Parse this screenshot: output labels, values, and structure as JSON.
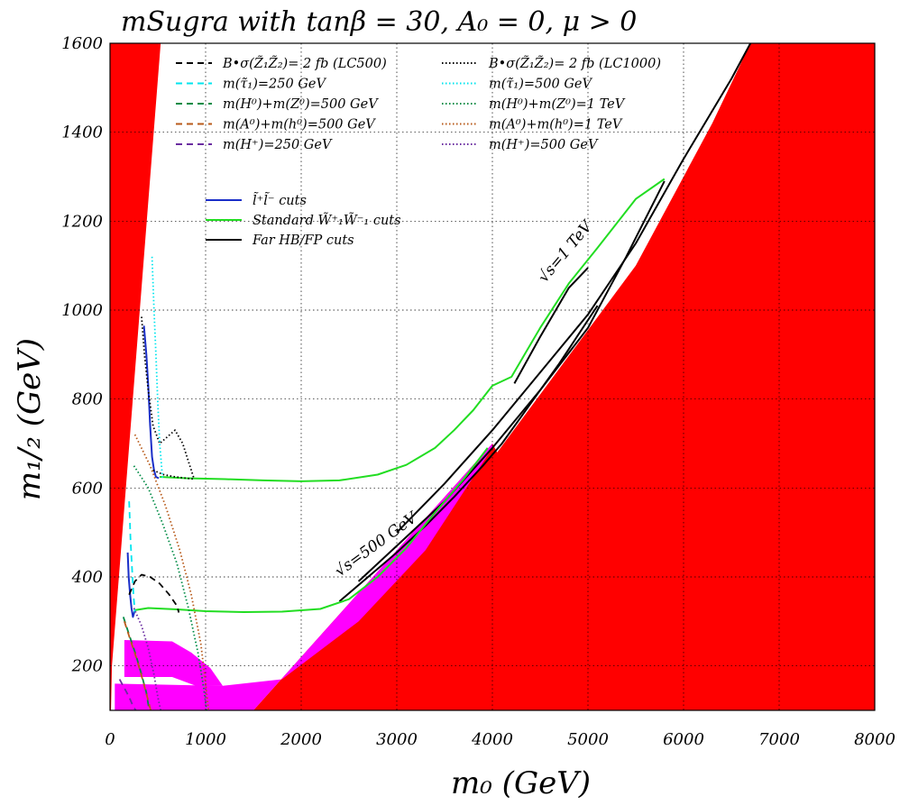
{
  "chart_data": {
    "type": "line",
    "title": "mSugra with tanβ = 30, A₀ = 0, μ > 0",
    "xlabel": "m₀ (GeV)",
    "ylabel": "m₁/₂ (GeV)",
    "xlim": [
      0,
      8000
    ],
    "ylim": [
      100,
      1600
    ],
    "xticks": [
      "0",
      "1000",
      "2000",
      "3000",
      "4000",
      "5000",
      "6000",
      "7000",
      "8000"
    ],
    "yticks": [
      "200",
      "400",
      "600",
      "800",
      "1000",
      "1200",
      "1400",
      "1600"
    ],
    "grid": "dotted",
    "legend_position": "top-left",
    "legend_dashed": [
      {
        "label": "B•σ(Z̃₁Z̃₂)= 2 fb (LC500)",
        "color": "#000000",
        "style": "dash"
      },
      {
        "label": "m(τ̃₁)=250 GeV",
        "color": "#00e5ee",
        "style": "dash"
      },
      {
        "label": "m(H⁰)+m(Z⁰)=500 GeV",
        "color": "#008b45",
        "style": "dash"
      },
      {
        "label": "m(A⁰)+m(h⁰)=500 GeV",
        "color": "#b85a1a",
        "style": "dash"
      },
      {
        "label": "m(H⁺)=250 GeV",
        "color": "#6a2ca0",
        "style": "dash"
      },
      {
        "label": "B•σ(Z̃₁Z̃₂)= 2 fb (LC1000)",
        "color": "#000000",
        "style": "dot"
      },
      {
        "label": "m(τ̃₁)=500 GeV",
        "color": "#00e5ee",
        "style": "dot"
      },
      {
        "label": "m(H⁰)+m(Z⁰)=1 TeV",
        "color": "#008b45",
        "style": "dot"
      },
      {
        "label": "m(A⁰)+m(h⁰)=1 TeV",
        "color": "#b85a1a",
        "style": "dot"
      },
      {
        "label": "m(H⁺)=500 GeV",
        "color": "#6a2ca0",
        "style": "dot"
      }
    ],
    "legend_solid": [
      {
        "label": "l̃⁺l̃⁻ cuts",
        "color": "#1a2ec8"
      },
      {
        "label": "Standard W̃⁺₁W̃⁻₁ cuts",
        "color": "#22dd22"
      },
      {
        "label": "Far HB/FP cuts",
        "color": "#000000"
      }
    ],
    "annotations": [
      {
        "text": "√s=500 GeV",
        "x": 2400,
        "y": 400
      },
      {
        "text": "√s=1 TeV",
        "x": 4550,
        "y": 1060
      }
    ],
    "regions": [
      {
        "name": "excluded-theory-high-m0",
        "color": "#ff0000",
        "points": [
          [
            1500,
            100
          ],
          [
            4000,
            700
          ],
          [
            4050,
            680
          ],
          [
            5500,
            1100
          ],
          [
            6300,
            1420
          ],
          [
            6700,
            1600
          ],
          [
            8000,
            1600
          ],
          [
            8000,
            100
          ]
        ]
      },
      {
        "name": "excluded-theory-low-m0",
        "color": "#ff0000",
        "points": [
          [
            0,
            100
          ],
          [
            0,
            1600
          ],
          [
            530,
            1600
          ],
          [
            20,
            200
          ],
          [
            10,
            100
          ]
        ]
      },
      {
        "name": "lep2-excluded",
        "color": "#ff00ff",
        "points": [
          [
            50,
            100
          ],
          [
            50,
            160
          ],
          [
            1170,
            155
          ],
          [
            1800,
            170
          ],
          [
            2600,
            300
          ],
          [
            3300,
            460
          ],
          [
            4000,
            690
          ],
          [
            4000,
            700
          ],
          [
            1500,
            100
          ]
        ]
      },
      {
        "name": "lep-chargino-bump",
        "color": "#ff00ff",
        "points": [
          [
            150,
            258
          ],
          [
            650,
            255
          ],
          [
            850,
            230
          ],
          [
            1050,
            195
          ],
          [
            1180,
            155
          ],
          [
            900,
            155
          ],
          [
            650,
            175
          ],
          [
            150,
            175
          ]
        ]
      }
    ],
    "series": [
      {
        "name": "Far HB/FP cuts (LC500)",
        "color": "#000000",
        "style": "solid",
        "x": [
          2400,
          2700,
          3000,
          3300,
          3600,
          3900,
          4100,
          4300,
          4500,
          4700,
          4900,
          5100
        ],
        "y": [
          345,
          400,
          455,
          515,
          580,
          650,
          700,
          760,
          820,
          880,
          945,
          1010
        ]
      },
      {
        "name": "Far HB/FP cuts (LC1000) upper",
        "color": "#000000",
        "style": "solid",
        "x": [
          3000,
          3500,
          4000,
          4500,
          5000,
          5500,
          6000,
          6500,
          6700
        ],
        "y": [
          500,
          610,
          730,
          860,
          990,
          1150,
          1340,
          1520,
          1600
        ]
      },
      {
        "name": "Far HB/FP cuts (LC1000) lower",
        "color": "#000000",
        "style": "solid",
        "x": [
          2600,
          3000,
          3500,
          4000,
          4500,
          5000,
          5400,
          5800
        ],
        "y": [
          390,
          470,
          570,
          690,
          820,
          960,
          1120,
          1290
        ]
      },
      {
        "name": "Far HB/FP short √s=1 TeV",
        "color": "#000000",
        "style": "solid",
        "x": [
          4230,
          4500,
          4800,
          5000
        ],
        "y": [
          835,
          940,
          1050,
          1095
        ]
      },
      {
        "name": "Standard W̃⁺₁W̃⁻₁ cuts (LC1000)",
        "color": "#22dd22",
        "style": "solid",
        "x": [
          520,
          800,
          1200,
          1600,
          2000,
          2400,
          2800,
          3100,
          3400,
          3600,
          3800,
          4000,
          4200,
          4500,
          4800,
          5100,
          5500,
          5800
        ],
        "y": [
          625,
          622,
          620,
          617,
          615,
          617,
          630,
          652,
          690,
          730,
          775,
          830,
          850,
          960,
          1060,
          1140,
          1250,
          1295
        ]
      },
      {
        "name": "Standard W̃⁺₁W̃⁻₁ cuts (LC500)",
        "color": "#22dd22",
        "style": "solid",
        "x": [
          250,
          400,
          700,
          1000,
          1400,
          1800,
          2200,
          2500,
          2800,
          3100,
          3400,
          3700,
          3950
        ],
        "y": [
          325,
          330,
          327,
          323,
          321,
          322,
          328,
          350,
          400,
          465,
          545,
          620,
          690
        ]
      },
      {
        "name": "l̃⁺l̃⁻ cuts (LC1000)",
        "color": "#1a2ec8",
        "style": "solid",
        "x": [
          355,
          380,
          400,
          420,
          440,
          460,
          480,
          510
        ],
        "y": [
          965,
          900,
          830,
          740,
          670,
          640,
          625,
          622
        ]
      },
      {
        "name": "l̃⁺l̃⁻ cuts (LC500)",
        "color": "#1a2ec8",
        "style": "solid",
        "x": [
          185,
          195,
          210,
          225,
          240,
          260
        ],
        "y": [
          455,
          400,
          360,
          330,
          310,
          325
        ]
      },
      {
        "name": "B•σ 2 fb LC500",
        "color": "#000000",
        "style": "dash",
        "x": [
          200,
          260,
          330,
          420,
          520,
          620,
          700,
          720
        ],
        "y": [
          360,
          390,
          405,
          400,
          385,
          360,
          335,
          320
        ]
      },
      {
        "name": "B•σ 2 fb LC1000",
        "color": "#000000",
        "style": "dot",
        "x": [
          330,
          360,
          400,
          450,
          520,
          600,
          680,
          760,
          820,
          880
        ],
        "y": [
          985,
          900,
          820,
          740,
          700,
          715,
          730,
          700,
          660,
          620
        ]
      },
      {
        "name": "B•σ 2 fb LC1000 bottom",
        "color": "#000000",
        "style": "dot",
        "x": [
          450,
          560,
          680,
          800,
          880
        ],
        "y": [
          640,
          630,
          625,
          622,
          620
        ]
      },
      {
        "name": "m(τ̃₁)=250 GeV",
        "color": "#00e5ee",
        "style": "dash",
        "x": [
          200,
          215,
          230,
          245,
          260
        ],
        "y": [
          570,
          480,
          420,
          360,
          320
        ]
      },
      {
        "name": "m(τ̃₁)=500 GeV",
        "color": "#00e5ee",
        "style": "dot",
        "x": [
          440,
          460,
          480,
          500,
          520,
          550
        ],
        "y": [
          1120,
          1000,
          900,
          790,
          700,
          620
        ]
      },
      {
        "name": "m(H⁰)+m(Z⁰)=500 GeV",
        "color": "#008b45",
        "style": "dash",
        "x": [
          140,
          200,
          270,
          330,
          380,
          410
        ],
        "y": [
          310,
          270,
          225,
          180,
          140,
          100
        ]
      },
      {
        "name": "m(A⁰)+m(h⁰)=500 GeV",
        "color": "#b85a1a",
        "style": "dash",
        "x": [
          150,
          210,
          280,
          340,
          390,
          425
        ],
        "y": [
          300,
          260,
          215,
          170,
          130,
          100
        ]
      },
      {
        "name": "m(H⁺)=250 GeV",
        "color": "#6a2ca0",
        "style": "dash",
        "x": [
          100,
          150,
          200,
          240,
          270
        ],
        "y": [
          170,
          150,
          130,
          110,
          100
        ]
      },
      {
        "name": "m(H⁰)+m(Z⁰)=1 TeV",
        "color": "#008b45",
        "style": "dot",
        "x": [
          250,
          400,
          550,
          700,
          820,
          920,
          980,
          1010
        ],
        "y": [
          650,
          600,
          520,
          430,
          330,
          230,
          150,
          100
        ]
      },
      {
        "name": "m(A⁰)+m(h⁰)=1 TeV",
        "color": "#b85a1a",
        "style": "dot",
        "x": [
          260,
          420,
          580,
          730,
          850,
          950,
          1000,
          1030
        ],
        "y": [
          720,
          650,
          560,
          460,
          360,
          250,
          160,
          100
        ]
      },
      {
        "name": "m(H⁺)=500 GeV",
        "color": "#6a2ca0",
        "style": "dot",
        "x": [
          250,
          330,
          400,
          460,
          500,
          530
        ],
        "y": [
          330,
          290,
          240,
          180,
          130,
          100
        ]
      }
    ]
  }
}
